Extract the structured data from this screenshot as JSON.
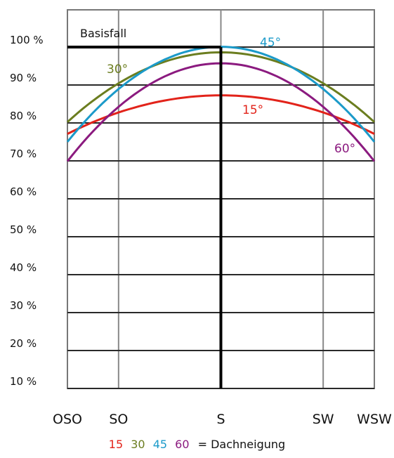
{
  "chart_data": {
    "type": "line",
    "x_categories": [
      "OSO",
      "SO",
      "S",
      "SW",
      "WSW"
    ],
    "x_values_deg": [
      -67.5,
      -45,
      0,
      45,
      67.5
    ],
    "y_ticks": [
      "100 %",
      "90 %",
      "80 %",
      "70 %",
      "60 %",
      "50 %",
      "40 %",
      "30 %",
      "20 %",
      "10 %"
    ],
    "ylim": [
      10,
      100
    ],
    "grid": true,
    "series": [
      {
        "name": "15°",
        "color": "#e2231a",
        "points": [
          [
            -67.5,
            77
          ],
          [
            -45,
            83
          ],
          [
            0,
            87
          ],
          [
            45,
            83
          ],
          [
            67.5,
            77
          ]
        ]
      },
      {
        "name": "30°",
        "color": "#6b7d1f",
        "points": [
          [
            -67.5,
            80
          ],
          [
            -45,
            91
          ],
          [
            0,
            98
          ],
          [
            45,
            91
          ],
          [
            67.5,
            80
          ]
        ]
      },
      {
        "name": "45°",
        "color": "#1b9ac9",
        "points": [
          [
            -67.5,
            75
          ],
          [
            -45,
            89
          ],
          [
            0,
            100
          ],
          [
            45,
            89
          ],
          [
            67.5,
            75
          ]
        ]
      },
      {
        "name": "60°",
        "color": "#8b1a7f",
        "points": [
          [
            -67.5,
            70
          ],
          [
            -45,
            84
          ],
          [
            0,
            96
          ],
          [
            45,
            84
          ],
          [
            67.5,
            70
          ]
        ]
      }
    ],
    "baseline": {
      "label": "Basisfall",
      "value": 100,
      "x_start": -67.5,
      "x_end": 0
    }
  },
  "legend": {
    "items": [
      {
        "text": "15",
        "color": "#e2231a"
      },
      {
        "text": "30",
        "color": "#6b7d1f"
      },
      {
        "text": "45",
        "color": "#1b9ac9"
      },
      {
        "text": "60",
        "color": "#8b1a7f"
      }
    ],
    "suffix": "= Dachneigung"
  }
}
